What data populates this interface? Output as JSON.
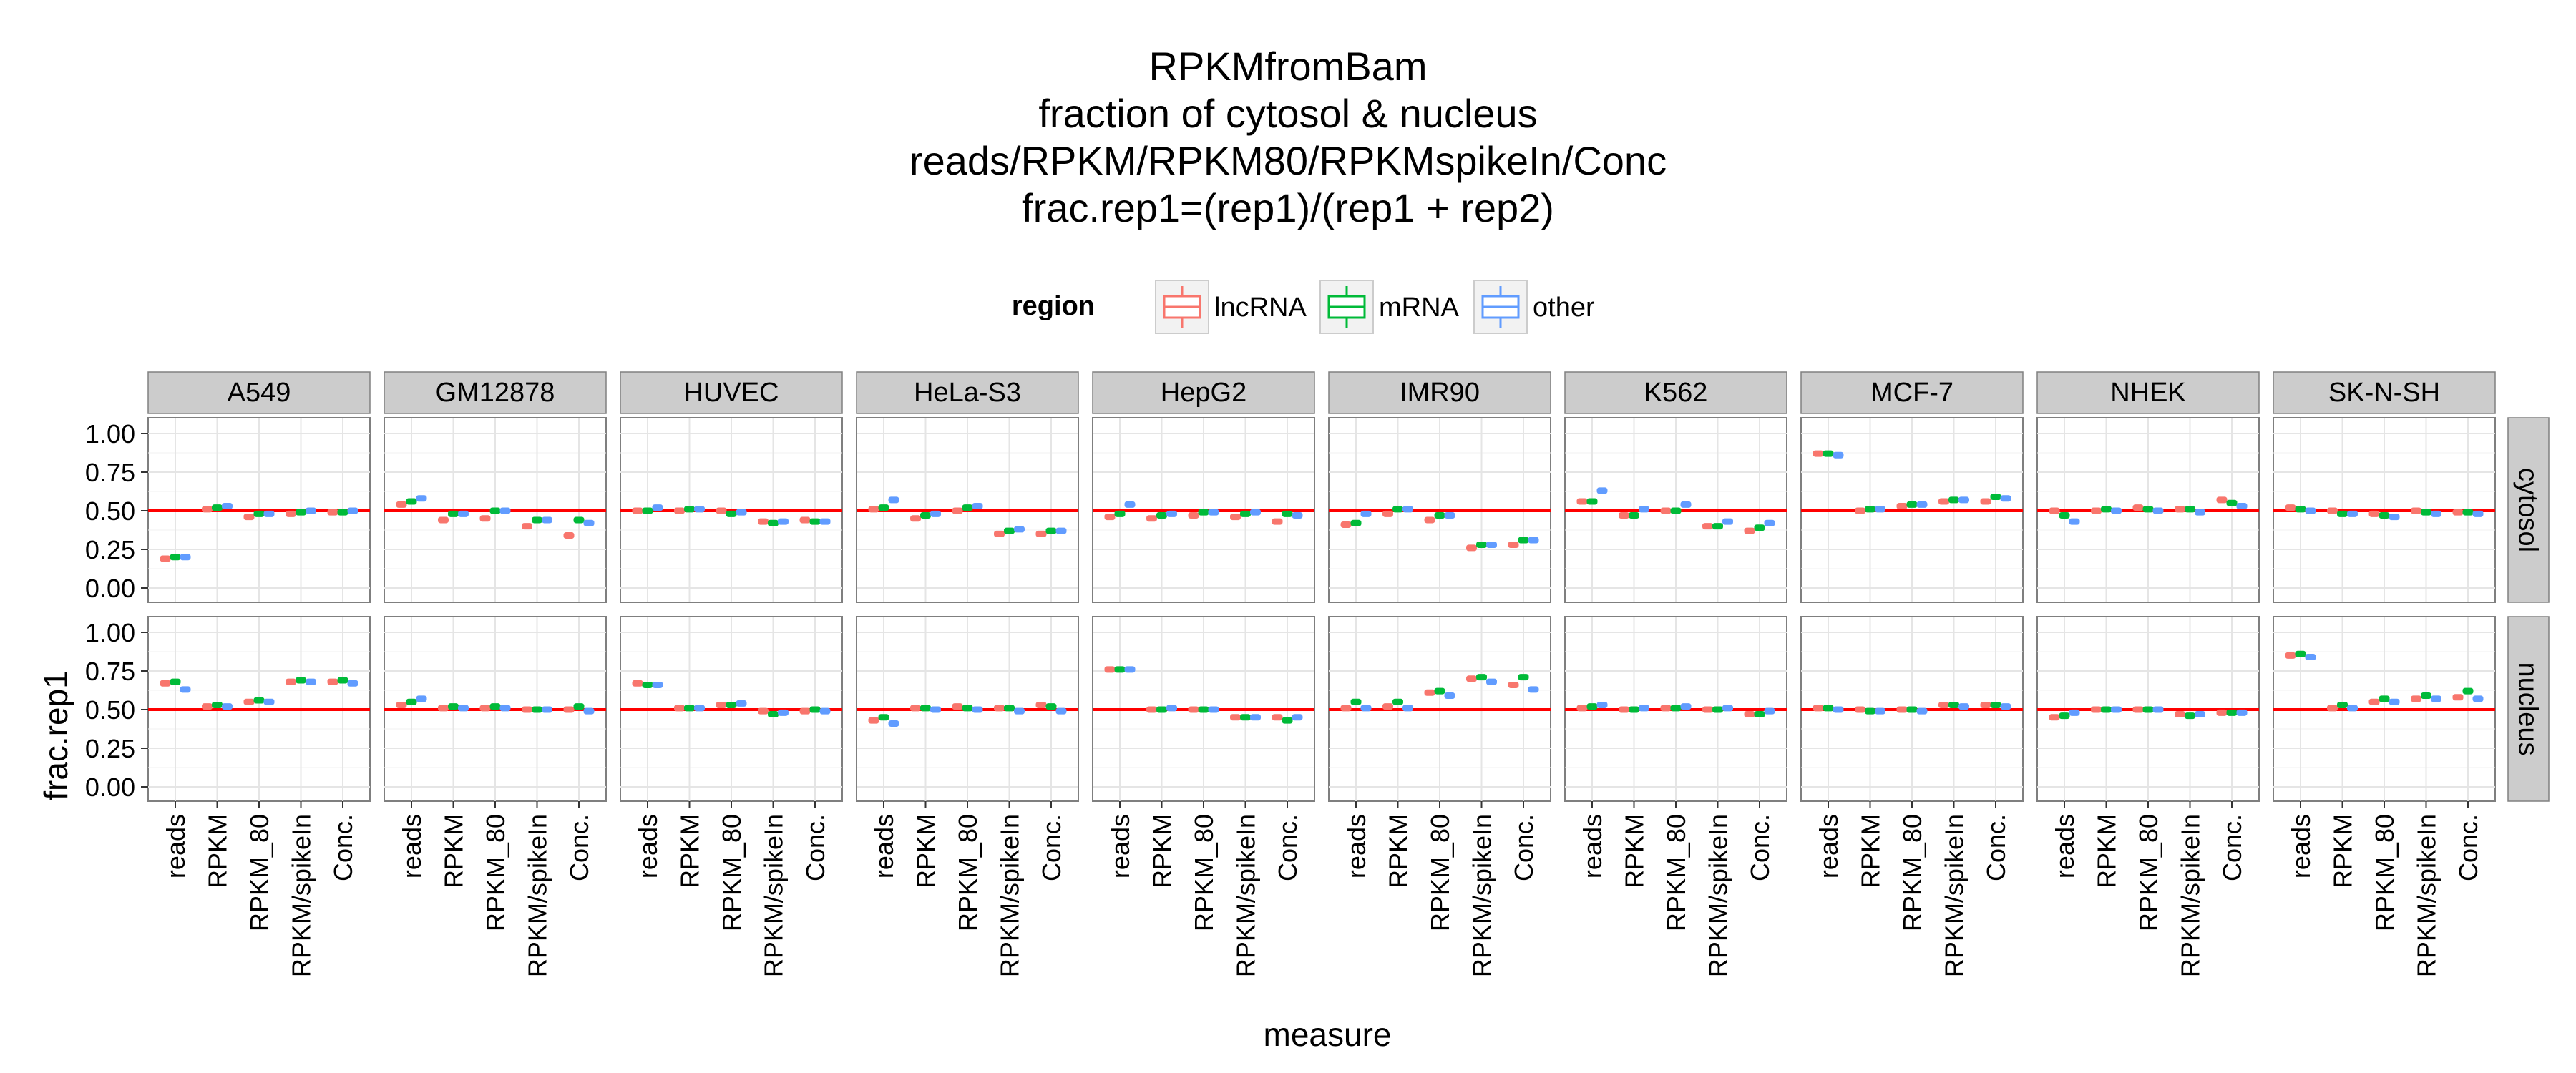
{
  "chart_data": {
    "type": "boxplot",
    "title": [
      "RPKMfromBam",
      "fraction of cytosol & nucleus",
      "reads/RPKM/RPKM80/RPKMspikeIn/Conc",
      "frac.rep1=(rep1)/(rep1 + rep2)"
    ],
    "xlabel": "measure",
    "ylabel": "frac.rep1",
    "ylim": [
      0,
      1
    ],
    "yticks": [
      "0.00",
      "0.25",
      "0.50",
      "0.75",
      "1.00"
    ],
    "reference_line": 0.5,
    "reference_color": "#ff0000",
    "legend": {
      "title": "region",
      "position": "top",
      "entries": [
        {
          "name": "lncRNA",
          "color": "#f8766d"
        },
        {
          "name": "mRNA",
          "color": "#00ba38"
        },
        {
          "name": "other",
          "color": "#619cff"
        }
      ]
    },
    "measures": [
      "reads",
      "RPKM",
      "RPKM_80",
      "RPKM/spikeIn",
      "Conc."
    ],
    "cells": [
      "A549",
      "GM12878",
      "HUVEC",
      "HeLa-S3",
      "HepG2",
      "IMR90",
      "K562",
      "MCF-7",
      "NHEK",
      "SK-N-SH"
    ],
    "rows": [
      "cytosol",
      "nucleus"
    ],
    "values": {
      "cytosol": {
        "A549": [
          [
            0.19,
            0.2,
            0.2
          ],
          [
            0.51,
            0.52,
            0.53
          ],
          [
            0.46,
            0.48,
            0.48
          ],
          [
            0.48,
            0.49,
            0.5
          ],
          [
            0.49,
            0.49,
            0.5
          ]
        ],
        "GM12878": [
          [
            0.54,
            0.56,
            0.58
          ],
          [
            0.44,
            0.48,
            0.48
          ],
          [
            0.45,
            0.5,
            0.5
          ],
          [
            0.4,
            0.44,
            0.44
          ],
          [
            0.34,
            0.44,
            0.42
          ]
        ],
        "HUVEC": [
          [
            0.5,
            0.5,
            0.52
          ],
          [
            0.5,
            0.51,
            0.51
          ],
          [
            0.5,
            0.48,
            0.49
          ],
          [
            0.43,
            0.42,
            0.43
          ],
          [
            0.44,
            0.43,
            0.43
          ]
        ],
        "HeLa-S3": [
          [
            0.51,
            0.52,
            0.57
          ],
          [
            0.45,
            0.47,
            0.48
          ],
          [
            0.5,
            0.52,
            0.53
          ],
          [
            0.35,
            0.37,
            0.38
          ],
          [
            0.35,
            0.37,
            0.37
          ]
        ],
        "HepG2": [
          [
            0.46,
            0.48,
            0.54
          ],
          [
            0.45,
            0.47,
            0.48
          ],
          [
            0.47,
            0.49,
            0.49
          ],
          [
            0.46,
            0.48,
            0.49
          ],
          [
            0.43,
            0.48,
            0.47
          ]
        ],
        "IMR90": [
          [
            0.41,
            0.42,
            0.48
          ],
          [
            0.48,
            0.51,
            0.51
          ],
          [
            0.44,
            0.47,
            0.47
          ],
          [
            0.26,
            0.28,
            0.28
          ],
          [
            0.28,
            0.31,
            0.31
          ]
        ],
        "K562": [
          [
            0.56,
            0.56,
            0.63
          ],
          [
            0.47,
            0.47,
            0.51
          ],
          [
            0.5,
            0.5,
            0.54
          ],
          [
            0.4,
            0.4,
            0.43
          ],
          [
            0.37,
            0.39,
            0.42
          ]
        ],
        "MCF-7": [
          [
            0.87,
            0.87,
            0.86
          ],
          [
            0.5,
            0.51,
            0.51
          ],
          [
            0.53,
            0.54,
            0.54
          ],
          [
            0.56,
            0.57,
            0.57
          ],
          [
            0.56,
            0.59,
            0.58
          ]
        ],
        "NHEK": [
          [
            0.5,
            0.47,
            0.43
          ],
          [
            0.5,
            0.51,
            0.5
          ],
          [
            0.52,
            0.51,
            0.5
          ],
          [
            0.51,
            0.51,
            0.49
          ],
          [
            0.57,
            0.55,
            0.53
          ]
        ],
        "SK-N-SH": [
          [
            0.52,
            0.51,
            0.5
          ],
          [
            0.5,
            0.48,
            0.48
          ],
          [
            0.48,
            0.47,
            0.46
          ],
          [
            0.5,
            0.49,
            0.48
          ],
          [
            0.49,
            0.49,
            0.48
          ]
        ]
      },
      "nucleus": {
        "A549": [
          [
            0.67,
            0.68,
            0.63
          ],
          [
            0.52,
            0.53,
            0.52
          ],
          [
            0.55,
            0.56,
            0.55
          ],
          [
            0.68,
            0.69,
            0.68
          ],
          [
            0.68,
            0.69,
            0.67
          ]
        ],
        "GM12878": [
          [
            0.53,
            0.55,
            0.57
          ],
          [
            0.51,
            0.52,
            0.51
          ],
          [
            0.51,
            0.52,
            0.51
          ],
          [
            0.5,
            0.5,
            0.5
          ],
          [
            0.5,
            0.52,
            0.49
          ]
        ],
        "HUVEC": [
          [
            0.67,
            0.66,
            0.66
          ],
          [
            0.51,
            0.51,
            0.51
          ],
          [
            0.53,
            0.53,
            0.54
          ],
          [
            0.49,
            0.47,
            0.48
          ],
          [
            0.49,
            0.5,
            0.49
          ]
        ],
        "HeLa-S3": [
          [
            0.43,
            0.45,
            0.41
          ],
          [
            0.51,
            0.51,
            0.5
          ],
          [
            0.52,
            0.51,
            0.5
          ],
          [
            0.51,
            0.51,
            0.49
          ],
          [
            0.53,
            0.52,
            0.49
          ]
        ],
        "HepG2": [
          [
            0.76,
            0.76,
            0.76
          ],
          [
            0.5,
            0.5,
            0.51
          ],
          [
            0.5,
            0.5,
            0.5
          ],
          [
            0.45,
            0.45,
            0.45
          ],
          [
            0.45,
            0.43,
            0.45
          ]
        ],
        "IMR90": [
          [
            0.51,
            0.55,
            0.51
          ],
          [
            0.52,
            0.55,
            0.51
          ],
          [
            0.61,
            0.62,
            0.59
          ],
          [
            0.7,
            0.71,
            0.68
          ],
          [
            0.66,
            0.71,
            0.63
          ]
        ],
        "K562": [
          [
            0.51,
            0.52,
            0.53
          ],
          [
            0.5,
            0.5,
            0.51
          ],
          [
            0.51,
            0.51,
            0.52
          ],
          [
            0.5,
            0.5,
            0.51
          ],
          [
            0.47,
            0.47,
            0.49
          ]
        ],
        "MCF-7": [
          [
            0.51,
            0.51,
            0.5
          ],
          [
            0.5,
            0.49,
            0.49
          ],
          [
            0.5,
            0.5,
            0.49
          ],
          [
            0.53,
            0.53,
            0.52
          ],
          [
            0.53,
            0.53,
            0.52
          ]
        ],
        "NHEK": [
          [
            0.45,
            0.46,
            0.48
          ],
          [
            0.5,
            0.5,
            0.5
          ],
          [
            0.5,
            0.5,
            0.5
          ],
          [
            0.47,
            0.46,
            0.47
          ],
          [
            0.48,
            0.48,
            0.48
          ]
        ],
        "SK-N-SH": [
          [
            0.85,
            0.86,
            0.84
          ],
          [
            0.51,
            0.53,
            0.51
          ],
          [
            0.55,
            0.57,
            0.55
          ],
          [
            0.57,
            0.59,
            0.57
          ],
          [
            0.58,
            0.62,
            0.57
          ]
        ]
      }
    }
  }
}
